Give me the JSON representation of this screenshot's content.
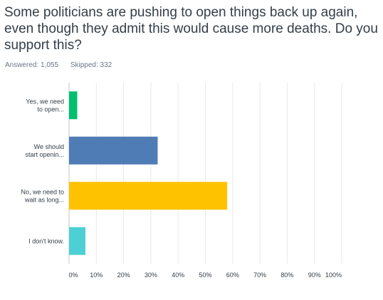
{
  "question": {
    "text": "Some politicians are pushing to open things back up again, even though they admit this would cause more deaths. Do you support this?"
  },
  "stats": {
    "answered": "Answered: 1,055",
    "skipped": "Skipped: 332"
  },
  "chart_data": {
    "type": "bar",
    "orientation": "horizontal",
    "categories": [
      [
        "Yes, we need",
        "to open..."
      ],
      [
        "We should",
        "start openin..."
      ],
      [
        "No, we need to",
        "wait as long..."
      ],
      [
        "I don't know."
      ]
    ],
    "values": [
      3,
      32.5,
      58,
      6
    ],
    "colors": [
      "#00bf6f",
      "#507cb6",
      "#ffc200",
      "#4ecfd4"
    ],
    "xlim": [
      0,
      100
    ],
    "xticks": [
      "0%",
      "10%",
      "20%",
      "30%",
      "40%",
      "50%",
      "60%",
      "70%",
      "80%",
      "90%",
      "100%"
    ],
    "grid": true
  }
}
